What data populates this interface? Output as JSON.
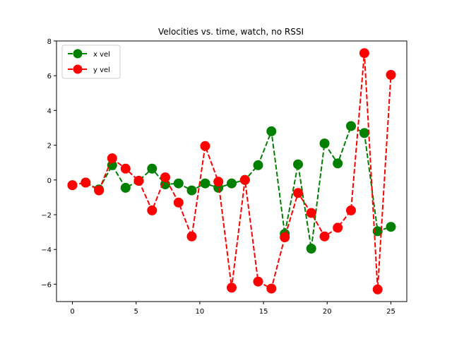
{
  "chart_data": {
    "type": "line",
    "title": "Velocities vs. time, watch, no RSSI",
    "xlabel": "",
    "ylabel": "",
    "xlim": [
      -1.25,
      26.25
    ],
    "ylim": [
      -7,
      8
    ],
    "xticks": [
      0,
      5,
      10,
      15,
      20,
      25
    ],
    "yticks": [
      -6,
      -4,
      -2,
      0,
      2,
      4,
      6,
      8
    ],
    "grid": false,
    "legend_position": "top-left",
    "series": [
      {
        "name": "x vel",
        "color": "#008000",
        "line_style": "dashed",
        "marker": "circle",
        "x": [
          0,
          1.04,
          2.08,
          3.12,
          4.17,
          5.21,
          6.25,
          7.29,
          8.33,
          9.37,
          10.42,
          11.46,
          12.5,
          13.54,
          14.58,
          15.62,
          16.67,
          17.71,
          18.75,
          19.79,
          20.83,
          21.87,
          22.92,
          23.96,
          25.0
        ],
        "y": [
          -0.3,
          -0.15,
          -0.55,
          0.85,
          -0.45,
          -0.05,
          0.65,
          -0.25,
          -0.2,
          -0.6,
          -0.2,
          -0.45,
          -0.2,
          0.0,
          0.85,
          2.8,
          -3.1,
          0.9,
          -3.95,
          2.1,
          0.95,
          3.1,
          2.7,
          -2.95,
          -2.7
        ]
      },
      {
        "name": "y vel",
        "color": "#ff0000",
        "line_style": "dashed",
        "marker": "circle",
        "x": [
          0,
          1.04,
          2.08,
          3.12,
          4.17,
          5.21,
          6.25,
          7.29,
          8.33,
          9.37,
          10.42,
          11.46,
          12.5,
          13.54,
          14.58,
          15.62,
          16.67,
          17.71,
          18.75,
          19.79,
          20.83,
          21.87,
          22.92,
          23.96,
          25.0
        ],
        "y": [
          -0.3,
          -0.15,
          -0.6,
          1.25,
          0.65,
          -0.05,
          -1.75,
          0.15,
          -1.3,
          -3.25,
          1.95,
          -0.1,
          -6.2,
          0.0,
          -5.85,
          -6.25,
          -3.3,
          -0.75,
          -1.9,
          -3.25,
          -2.75,
          -1.75,
          7.3,
          -6.3,
          6.05
        ]
      }
    ]
  }
}
